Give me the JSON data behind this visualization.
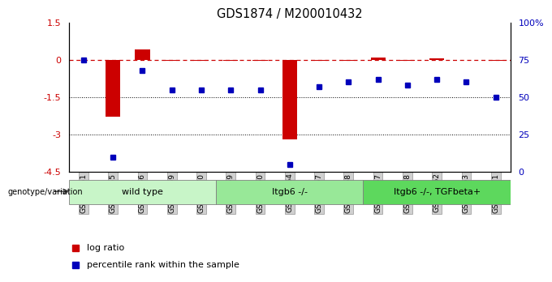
{
  "title": "GDS1874 / M200010432",
  "samples": [
    "GSM41461",
    "GSM41465",
    "GSM41466",
    "GSM41469",
    "GSM41470",
    "GSM41459",
    "GSM41460",
    "GSM41464",
    "GSM41467",
    "GSM41468",
    "GSM41457",
    "GSM41458",
    "GSM41462",
    "GSM41463",
    "GSM41471"
  ],
  "log_ratio": [
    0.0,
    -2.3,
    0.4,
    -0.05,
    -0.05,
    -0.05,
    -0.05,
    -3.2,
    -0.05,
    -0.05,
    0.1,
    -0.05,
    0.05,
    0.0,
    -0.05
  ],
  "percentile_rank": [
    75,
    10,
    68,
    55,
    55,
    55,
    55,
    5,
    57,
    60,
    62,
    58,
    62,
    60,
    50
  ],
  "groups": [
    {
      "label": "wild type",
      "start": 0,
      "end": 5,
      "color": "#c8f5c8"
    },
    {
      "label": "Itgb6 -/-",
      "start": 5,
      "end": 10,
      "color": "#98e898"
    },
    {
      "label": "Itgb6 -/-, TGFbeta+",
      "start": 10,
      "end": 15,
      "color": "#5dd85d"
    }
  ],
  "ylim_left": [
    -4.5,
    1.5
  ],
  "ylim_right": [
    0,
    100
  ],
  "yticks_left": [
    1.5,
    0,
    -1.5,
    -3,
    -4.5
  ],
  "yticks_right": [
    100,
    75,
    50,
    25,
    0
  ],
  "hlines": [
    -1.5,
    -3.0
  ],
  "ref_line_y": 0.0,
  "bar_color": "#cc0000",
  "dot_color": "#0000bb",
  "tick_bg_color": "#d0d0d0",
  "background_color": "#ffffff",
  "legend_items": [
    "log ratio",
    "percentile rank within the sample"
  ]
}
